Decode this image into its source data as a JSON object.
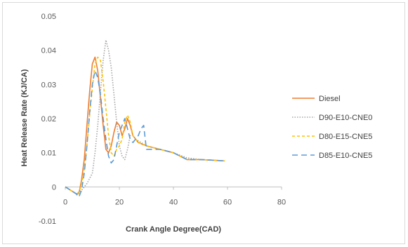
{
  "chart_data": {
    "type": "line",
    "xlabel": "Crank Angle Degree(CAD)",
    "ylabel": "Heat Release Rate (KJ/CA)",
    "xlim": [
      0,
      80
    ],
    "ylim": [
      -0.01,
      0.05
    ],
    "xticks": [
      "0",
      "20",
      "40",
      "60",
      "80"
    ],
    "yticks": [
      "-0.01",
      "0",
      "0.01",
      "0.02",
      "0.03",
      "0.04",
      "0.05"
    ],
    "grid": false,
    "legend_position": "right",
    "series": [
      {
        "name": "Diesel",
        "color": "#ED7D31",
        "dash": "solid",
        "points": [
          [
            0,
            0
          ],
          [
            2,
            -0.001
          ],
          [
            4,
            -0.002
          ],
          [
            5,
            -0.002
          ],
          [
            6,
            0.002
          ],
          [
            7,
            0.008
          ],
          [
            8,
            0.018
          ],
          [
            9,
            0.028
          ],
          [
            10,
            0.036
          ],
          [
            11,
            0.038
          ],
          [
            12,
            0.034
          ],
          [
            13,
            0.026
          ],
          [
            14,
            0.018
          ],
          [
            15,
            0.011
          ],
          [
            16,
            0.01
          ],
          [
            17,
            0.012
          ],
          [
            18,
            0.016
          ],
          [
            19,
            0.019
          ],
          [
            20,
            0.018
          ],
          [
            21,
            0.015
          ],
          [
            22,
            0.017
          ],
          [
            23,
            0.02
          ],
          [
            24,
            0.018
          ],
          [
            25,
            0.015
          ],
          [
            27,
            0.013
          ],
          [
            30,
            0.012
          ],
          [
            35,
            0.011
          ],
          [
            40,
            0.01
          ],
          [
            45,
            0.008
          ],
          [
            50,
            0.008
          ],
          [
            55,
            0.0078
          ],
          [
            59,
            0.0076
          ]
        ]
      },
      {
        "name": "D90-E10-CNE0",
        "color": "#A5A5A5",
        "dash": "dotted",
        "points": [
          [
            0,
            0
          ],
          [
            2,
            -0.001
          ],
          [
            4,
            -0.002
          ],
          [
            6,
            -0.001
          ],
          [
            8,
            0.001
          ],
          [
            10,
            0.004
          ],
          [
            11,
            0.01
          ],
          [
            12,
            0.018
          ],
          [
            13,
            0.028
          ],
          [
            14,
            0.037
          ],
          [
            15,
            0.043
          ],
          [
            16,
            0.04
          ],
          [
            17,
            0.035
          ],
          [
            18,
            0.027
          ],
          [
            19,
            0.019
          ],
          [
            20,
            0.012
          ],
          [
            21,
            0.009
          ],
          [
            22,
            0.008
          ],
          [
            23,
            0.011
          ],
          [
            24,
            0.015
          ],
          [
            25,
            0.015
          ],
          [
            26,
            0.014
          ],
          [
            28,
            0.013
          ],
          [
            30,
            0.012
          ],
          [
            35,
            0.011
          ],
          [
            40,
            0.01
          ],
          [
            45,
            0.0085
          ],
          [
            50,
            0.008
          ],
          [
            55,
            0.0078
          ],
          [
            59,
            0.0076
          ]
        ]
      },
      {
        "name": "D80-E15-CNE5",
        "color": "#FFC000",
        "dash": "dashed",
        "points": [
          [
            0,
            0
          ],
          [
            2,
            -0.001
          ],
          [
            4,
            -0.002
          ],
          [
            5,
            -0.002
          ],
          [
            6,
            0.001
          ],
          [
            7,
            0.005
          ],
          [
            8,
            0.012
          ],
          [
            9,
            0.021
          ],
          [
            10,
            0.029
          ],
          [
            11,
            0.036
          ],
          [
            12,
            0.038
          ],
          [
            13,
            0.037
          ],
          [
            14,
            0.031
          ],
          [
            15,
            0.023
          ],
          [
            16,
            0.015
          ],
          [
            17,
            0.01
          ],
          [
            18,
            0.009
          ],
          [
            19,
            0.011
          ],
          [
            20,
            0.012
          ],
          [
            21,
            0.014
          ],
          [
            22,
            0.019
          ],
          [
            23,
            0.021
          ],
          [
            24,
            0.019
          ],
          [
            25,
            0.015
          ],
          [
            27,
            0.013
          ],
          [
            30,
            0.012
          ],
          [
            35,
            0.011
          ],
          [
            40,
            0.01
          ],
          [
            45,
            0.008
          ],
          [
            50,
            0.008
          ],
          [
            55,
            0.0078
          ],
          [
            59,
            0.0076
          ]
        ]
      },
      {
        "name": "D85-E10-CNE5",
        "color": "#5B9BD5",
        "dash": "longdash",
        "points": [
          [
            0,
            0
          ],
          [
            2,
            -0.001
          ],
          [
            4,
            -0.002
          ],
          [
            5,
            -0.003
          ],
          [
            6,
            -0.001
          ],
          [
            7,
            0.004
          ],
          [
            8,
            0.012
          ],
          [
            9,
            0.022
          ],
          [
            10,
            0.03
          ],
          [
            11,
            0.034
          ],
          [
            12,
            0.032
          ],
          [
            13,
            0.027
          ],
          [
            14,
            0.02
          ],
          [
            15,
            0.014
          ],
          [
            16,
            0.009
          ],
          [
            17,
            0.007
          ],
          [
            18,
            0.008
          ],
          [
            19,
            0.012
          ],
          [
            20,
            0.016
          ],
          [
            21,
            0.018
          ],
          [
            22,
            0.02
          ],
          [
            23,
            0.017
          ],
          [
            24,
            0.014
          ],
          [
            25,
            0.013
          ],
          [
            26,
            0.014
          ],
          [
            27,
            0.015
          ],
          [
            28,
            0.017
          ],
          [
            29,
            0.018
          ],
          [
            30,
            0.011
          ],
          [
            35,
            0.011
          ],
          [
            40,
            0.01
          ],
          [
            45,
            0.008
          ],
          [
            50,
            0.008
          ],
          [
            55,
            0.0078
          ],
          [
            59,
            0.0076
          ]
        ]
      }
    ]
  }
}
